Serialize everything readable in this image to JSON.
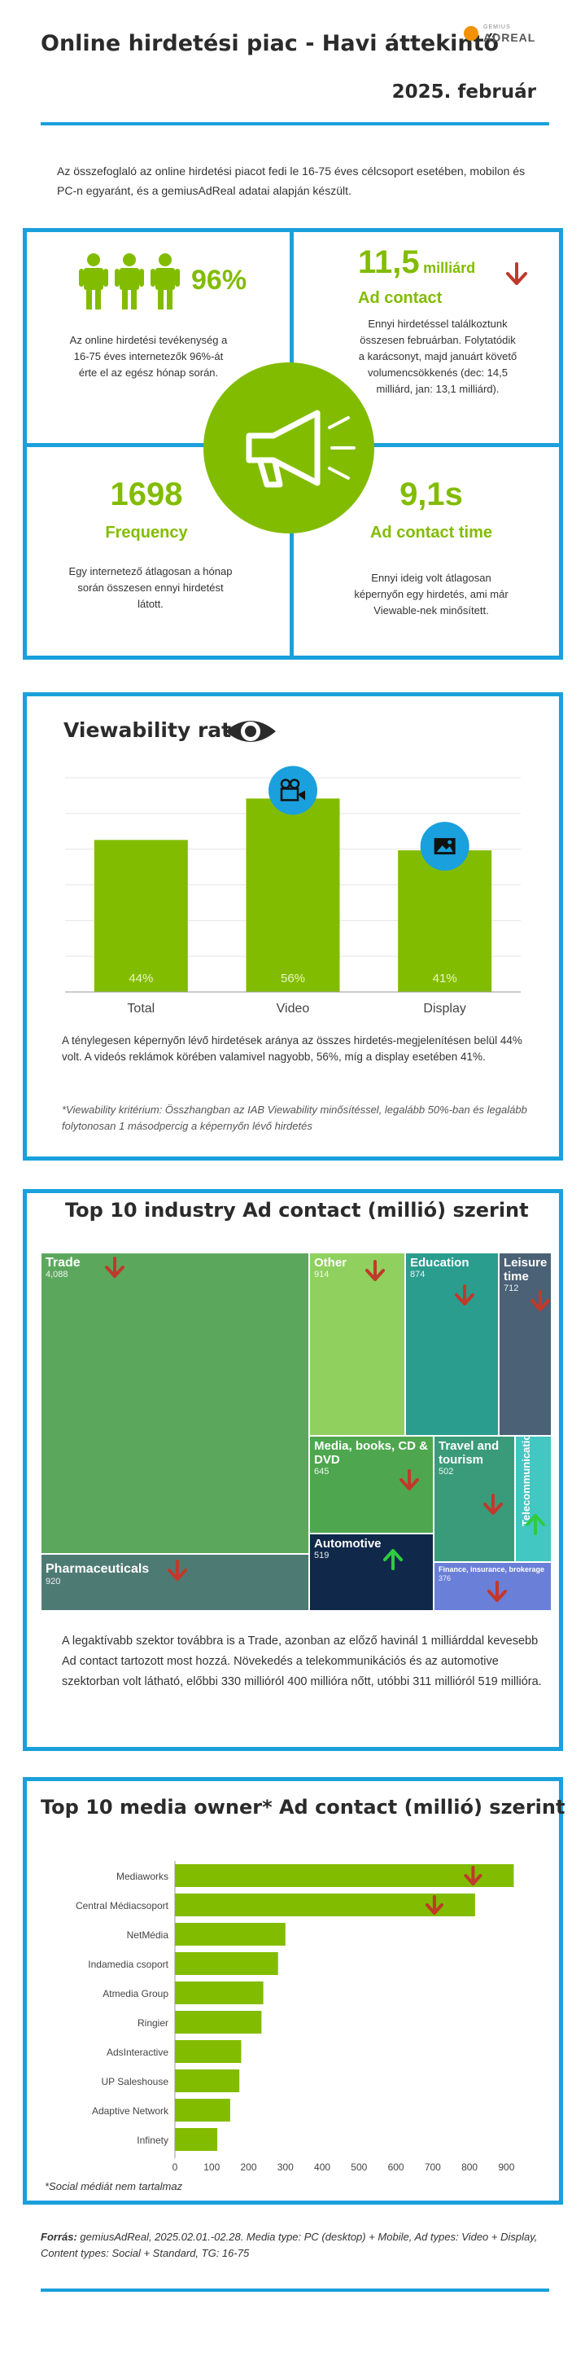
{
  "header": {
    "title": "Online hirdetési piac  - Havi áttekintő",
    "date": "2025. február",
    "logo_small": "GEMIUS",
    "logo_main": "ADREAL"
  },
  "intro": "Az összefoglaló az online hirdetési piacot fedi le 16-75 éves célcsoport esetében, mobilon és PC-n egyaránt, és a gemiusAdReal adatai alapján készült.",
  "kpis": {
    "reach": {
      "value": "96%",
      "text": "Az online hirdetési tevékenység a 16-75 éves internetezők 96%-át érte el az egész hónap során."
    },
    "ad_contact": {
      "value": "11,5",
      "unit": "milliárd",
      "label": "Ad contact",
      "text": "Ennyi hirdetéssel találkoztunk összesen februárban. Folytatódik a karácsonyt, majd januárt követő volumencsökkenés (dec: 14,5 milliárd, jan: 13,1 milliárd)."
    },
    "frequency": {
      "value": "1698",
      "label": "Frequency",
      "text": "Egy internetező átlagosan a hónap során összesen ennyi hirdetést látott."
    },
    "ad_contact_time": {
      "value": "9,1s",
      "label": "Ad contact time",
      "text": "Ennyi ideig volt átlagosan képernyőn egy hirdetés, ami már Viewable-nek minősített."
    }
  },
  "viewability": {
    "title": "Viewability rate*",
    "text": "A ténylegesen képernyőn lévő hirdetések aránya az összes hirdetés-megjelenítésen belül 44% volt. A videós reklámok körében valamivel nagyobb, 56%, míg a display esetében 41%.",
    "footnote": "*Viewability kritérium: Összhangban az IAB Viewability minősítéssel, legalább 50%-ban és legalább folytonosan 1 másodpercig a képernyőn lévő hirdetés"
  },
  "industry": {
    "title": "Top 10 industry Ad contact (millió) szerint",
    "text": "A legaktívabb szektor továbbra is a Trade, azonban az előző havinál 1 milliárddal kevesebb Ad contact tartozott most hozzá. Növekedés a telekommunikációs és az automotive szektorban volt látható, előbbi 330 millióról 400 millióra nőtt, utóbbi 311 millióról 519 millióra."
  },
  "media_owner": {
    "title": "Top 10 media owner* Ad contact (millió) szerint",
    "footnote": "*Social médiát nem tartalmaz"
  },
  "footer": {
    "source_label": "Forrás:",
    "source_text": " gemiusAdReal, 2025.02.01.-02.28. Media type: PC (desktop) + Mobile, Ad types: Video + Display, Content types: Social + Standard, TG: 16-75"
  },
  "colors": {
    "accent_blue": "#1aa0dc",
    "accent_green": "#82bc00",
    "down_red": "#c0392b",
    "up_green": "#2ecc40"
  },
  "chart_data": [
    {
      "type": "bar",
      "categories": [
        "Total",
        "Video",
        "Display"
      ],
      "values": [
        44,
        56,
        41
      ],
      "value_labels": [
        "44%",
        "56%",
        "41%"
      ],
      "ylim": [
        0,
        62
      ]
    },
    {
      "type": "treemap",
      "items": [
        {
          "name": "Trade",
          "value": 4088,
          "label": "4,088",
          "trend": "down"
        },
        {
          "name": "Pharmaceuticals",
          "value": 920,
          "label": "920",
          "trend": "down"
        },
        {
          "name": "Other",
          "value": 914,
          "label": "914",
          "trend": "down"
        },
        {
          "name": "Education",
          "value": 874,
          "label": "874",
          "trend": "down"
        },
        {
          "name": "Leisure time",
          "value": 712,
          "label": "712",
          "trend": "down"
        },
        {
          "name": "Media, books, CD & DVD",
          "value": 645,
          "label": "645",
          "trend": "down"
        },
        {
          "name": "Automotive",
          "value": 519,
          "label": "519",
          "trend": "up"
        },
        {
          "name": "Travel and tourism",
          "value": 502,
          "label": "502",
          "trend": "down"
        },
        {
          "name": "Telecommunications",
          "value": 400,
          "label": "400",
          "trend": "up"
        },
        {
          "name": "Finance, insurance, brokerage",
          "value": 376,
          "label": "376",
          "trend": "down"
        }
      ]
    },
    {
      "type": "bar",
      "orientation": "horizontal",
      "categories": [
        "Mediaworks",
        "Central Médiacsoport",
        "NetMédia",
        "Indamedia csoport",
        "Atmedia Group",
        "Ringier",
        "AdsInteractive",
        "UP Saleshouse",
        "Adaptive Network",
        "Infinety"
      ],
      "values": [
        920,
        815,
        300,
        280,
        240,
        235,
        180,
        175,
        150,
        115
      ],
      "xlim": [
        0,
        950
      ],
      "ticks": [
        "0",
        "100",
        "200",
        "300",
        "400",
        "500",
        "600",
        "700",
        "800",
        "900"
      ]
    }
  ]
}
